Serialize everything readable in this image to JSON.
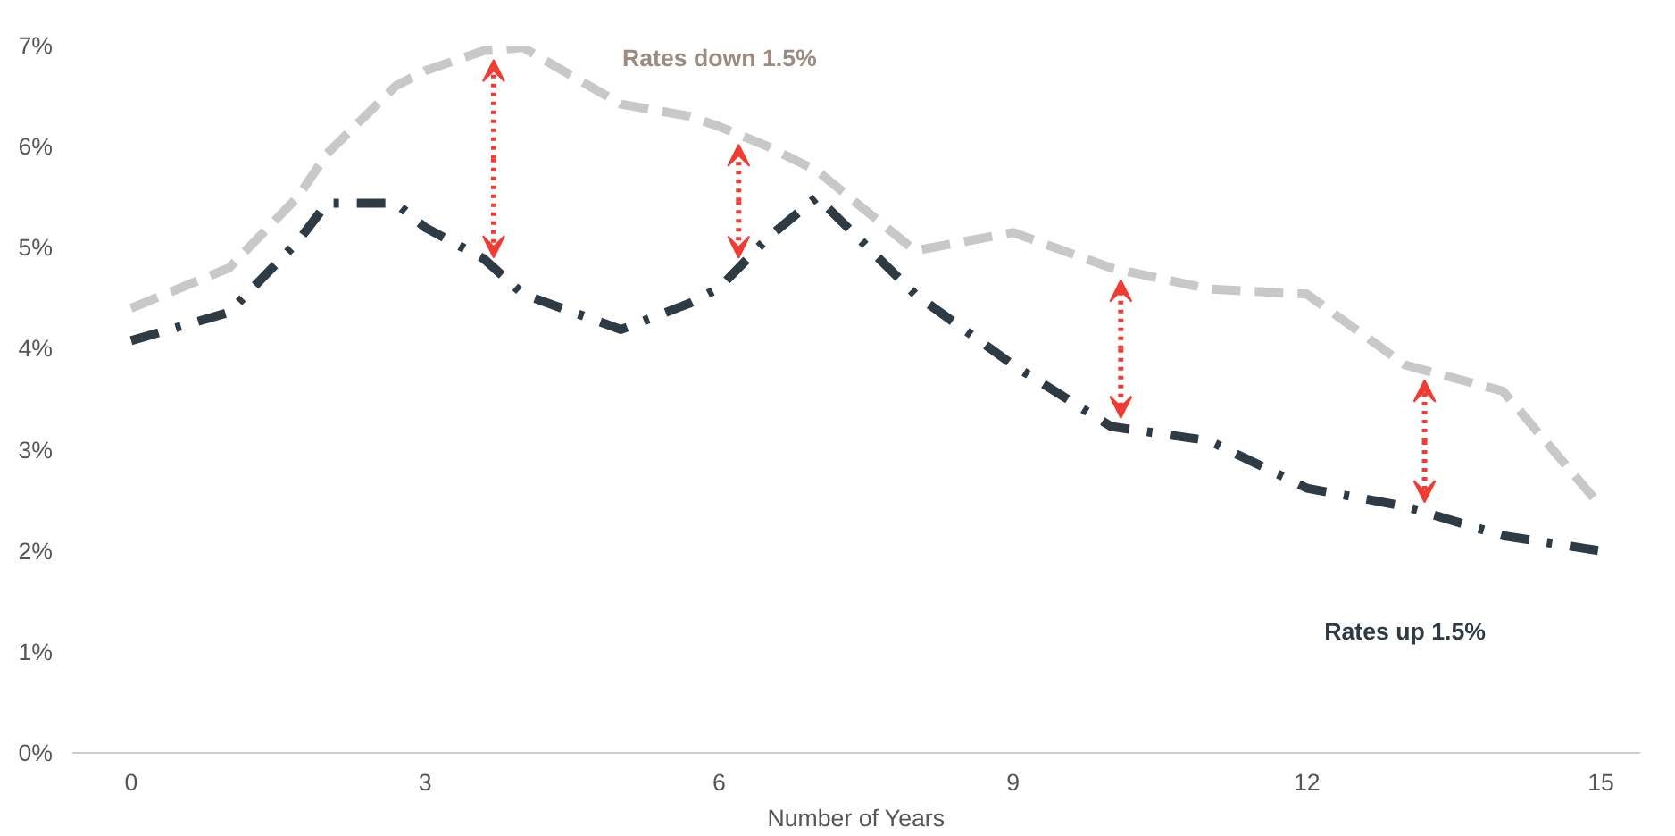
{
  "chart_data": {
    "type": "line",
    "xlabel": "Number of Years",
    "x": [
      0,
      1,
      1.7,
      2,
      2.7,
      3,
      3.6,
      4,
      5,
      5.7,
      6,
      6.5,
      7,
      8,
      9,
      10,
      11,
      12,
      13,
      14,
      15
    ],
    "series": [
      {
        "name": "Rates down 1.5%",
        "color": "#c8c8c8",
        "line_style": "dashed",
        "values": [
          4.4,
          4.8,
          5.5,
          5.93,
          6.6,
          6.75,
          6.95,
          6.98,
          6.42,
          6.3,
          6.2,
          6.0,
          5.76,
          4.97,
          5.15,
          4.8,
          4.59,
          4.54,
          3.84,
          3.58,
          2.44
        ]
      },
      {
        "name": "Rates up 1.5%",
        "color": "#2e3a44",
        "line_style": "dashdot",
        "values": [
          4.08,
          4.36,
          5.06,
          5.44,
          5.44,
          5.2,
          4.89,
          4.54,
          4.19,
          4.45,
          4.6,
          5.1,
          5.5,
          4.54,
          3.84,
          3.23,
          3.09,
          2.62,
          2.44,
          2.15,
          2.0
        ]
      }
    ],
    "xlim": [
      -0.6,
      15.4
    ],
    "ylim": [
      0,
      7
    ],
    "xticks": [
      0,
      3,
      6,
      9,
      12,
      15
    ],
    "yticks": [
      {
        "value": 0,
        "label": "0%"
      },
      {
        "value": 1,
        "label": "1%"
      },
      {
        "value": 2,
        "label": "2%"
      },
      {
        "value": 3,
        "label": "3%"
      },
      {
        "value": 4,
        "label": "4%"
      },
      {
        "value": 5,
        "label": "5%"
      },
      {
        "value": 6,
        "label": "6%"
      },
      {
        "value": 7,
        "label": "7%"
      }
    ],
    "grid": false
  }
}
